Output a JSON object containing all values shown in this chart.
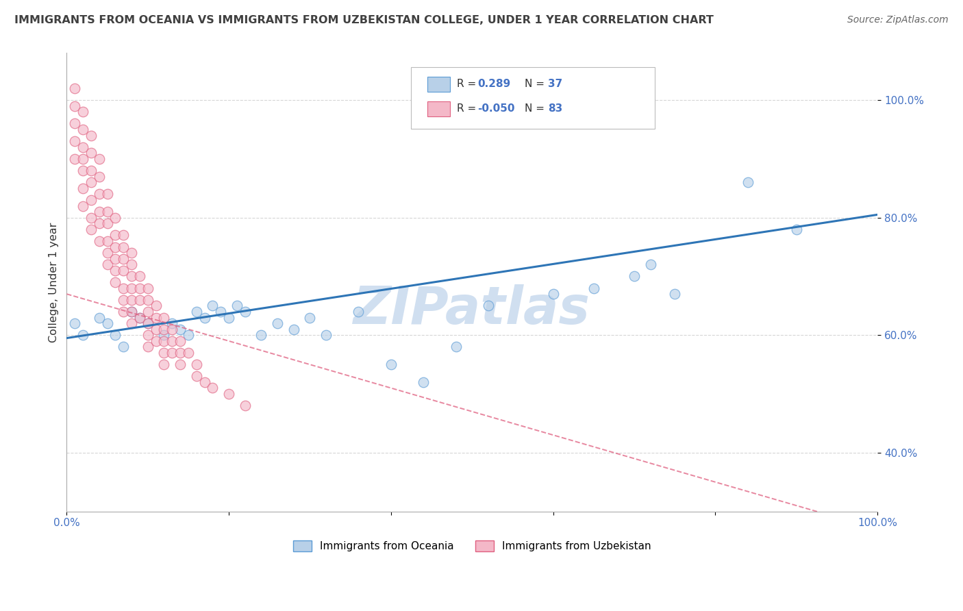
{
  "title": "IMMIGRANTS FROM OCEANIA VS IMMIGRANTS FROM UZBEKISTAN COLLEGE, UNDER 1 YEAR CORRELATION CHART",
  "source": "Source: ZipAtlas.com",
  "ylabel": "College, Under 1 year",
  "xlabel": "",
  "xlim": [
    0.0,
    1.0
  ],
  "ylim": [
    0.3,
    1.08
  ],
  "yticks": [
    0.4,
    0.6,
    0.8,
    1.0
  ],
  "xticks": [
    0.0,
    0.2,
    0.4,
    0.6,
    0.8,
    1.0
  ],
  "xtick_labels": [
    "0.0%",
    "",
    "",
    "",
    "",
    "100.0%"
  ],
  "ytick_labels": [
    "40.0%",
    "60.0%",
    "80.0%",
    "100.0%"
  ],
  "watermark": "ZIPatlas",
  "series": [
    {
      "name": "Immigrants from Oceania",
      "R": 0.289,
      "N": 37,
      "color": "#b8d0e8",
      "edge_color": "#5b9bd5",
      "line_color": "#2e75b6",
      "line_style": "solid",
      "x": [
        0.01,
        0.02,
        0.04,
        0.05,
        0.06,
        0.07,
        0.08,
        0.09,
        0.1,
        0.12,
        0.13,
        0.14,
        0.15,
        0.16,
        0.17,
        0.18,
        0.19,
        0.2,
        0.21,
        0.22,
        0.24,
        0.26,
        0.28,
        0.3,
        0.32,
        0.36,
        0.4,
        0.44,
        0.48,
        0.52,
        0.6,
        0.65,
        0.7,
        0.72,
        0.75,
        0.84,
        0.9
      ],
      "y": [
        0.62,
        0.6,
        0.63,
        0.62,
        0.6,
        0.58,
        0.64,
        0.63,
        0.62,
        0.6,
        0.62,
        0.61,
        0.6,
        0.64,
        0.63,
        0.65,
        0.64,
        0.63,
        0.65,
        0.64,
        0.6,
        0.62,
        0.61,
        0.63,
        0.6,
        0.64,
        0.55,
        0.52,
        0.58,
        0.65,
        0.67,
        0.68,
        0.7,
        0.72,
        0.67,
        0.86,
        0.78
      ]
    },
    {
      "name": "Immigrants from Uzbekistan",
      "R": -0.05,
      "N": 83,
      "color": "#f4b8c8",
      "edge_color": "#e06080",
      "line_color": "#e06080",
      "line_style": "dashed",
      "x": [
        0.01,
        0.01,
        0.01,
        0.01,
        0.01,
        0.02,
        0.02,
        0.02,
        0.02,
        0.02,
        0.02,
        0.02,
        0.03,
        0.03,
        0.03,
        0.03,
        0.03,
        0.03,
        0.03,
        0.04,
        0.04,
        0.04,
        0.04,
        0.04,
        0.04,
        0.05,
        0.05,
        0.05,
        0.05,
        0.05,
        0.05,
        0.06,
        0.06,
        0.06,
        0.06,
        0.06,
        0.06,
        0.07,
        0.07,
        0.07,
        0.07,
        0.07,
        0.07,
        0.07,
        0.08,
        0.08,
        0.08,
        0.08,
        0.08,
        0.08,
        0.08,
        0.09,
        0.09,
        0.09,
        0.09,
        0.1,
        0.1,
        0.1,
        0.1,
        0.1,
        0.1,
        0.11,
        0.11,
        0.11,
        0.11,
        0.12,
        0.12,
        0.12,
        0.12,
        0.12,
        0.13,
        0.13,
        0.13,
        0.14,
        0.14,
        0.14,
        0.15,
        0.16,
        0.16,
        0.17,
        0.18,
        0.2,
        0.22
      ],
      "y": [
        1.02,
        0.99,
        0.96,
        0.93,
        0.9,
        0.98,
        0.95,
        0.92,
        0.9,
        0.88,
        0.85,
        0.82,
        0.94,
        0.91,
        0.88,
        0.86,
        0.83,
        0.8,
        0.78,
        0.9,
        0.87,
        0.84,
        0.81,
        0.79,
        0.76,
        0.84,
        0.81,
        0.79,
        0.76,
        0.74,
        0.72,
        0.8,
        0.77,
        0.75,
        0.73,
        0.71,
        0.69,
        0.77,
        0.75,
        0.73,
        0.71,
        0.68,
        0.66,
        0.64,
        0.74,
        0.72,
        0.7,
        0.68,
        0.66,
        0.64,
        0.62,
        0.7,
        0.68,
        0.66,
        0.63,
        0.68,
        0.66,
        0.64,
        0.62,
        0.6,
        0.58,
        0.65,
        0.63,
        0.61,
        0.59,
        0.63,
        0.61,
        0.59,
        0.57,
        0.55,
        0.61,
        0.59,
        0.57,
        0.59,
        0.57,
        0.55,
        0.57,
        0.55,
        0.53,
        0.52,
        0.51,
        0.5,
        0.48
      ]
    }
  ],
  "background_color": "#ffffff",
  "grid_color": "#cccccc",
  "title_color": "#404040",
  "watermark_color": "#d0dff0",
  "watermark_fontsize": 55,
  "blue_line_start_y": 0.595,
  "blue_line_end_y": 0.805,
  "pink_line_start_y": 0.67,
  "pink_line_end_y": 0.27
}
